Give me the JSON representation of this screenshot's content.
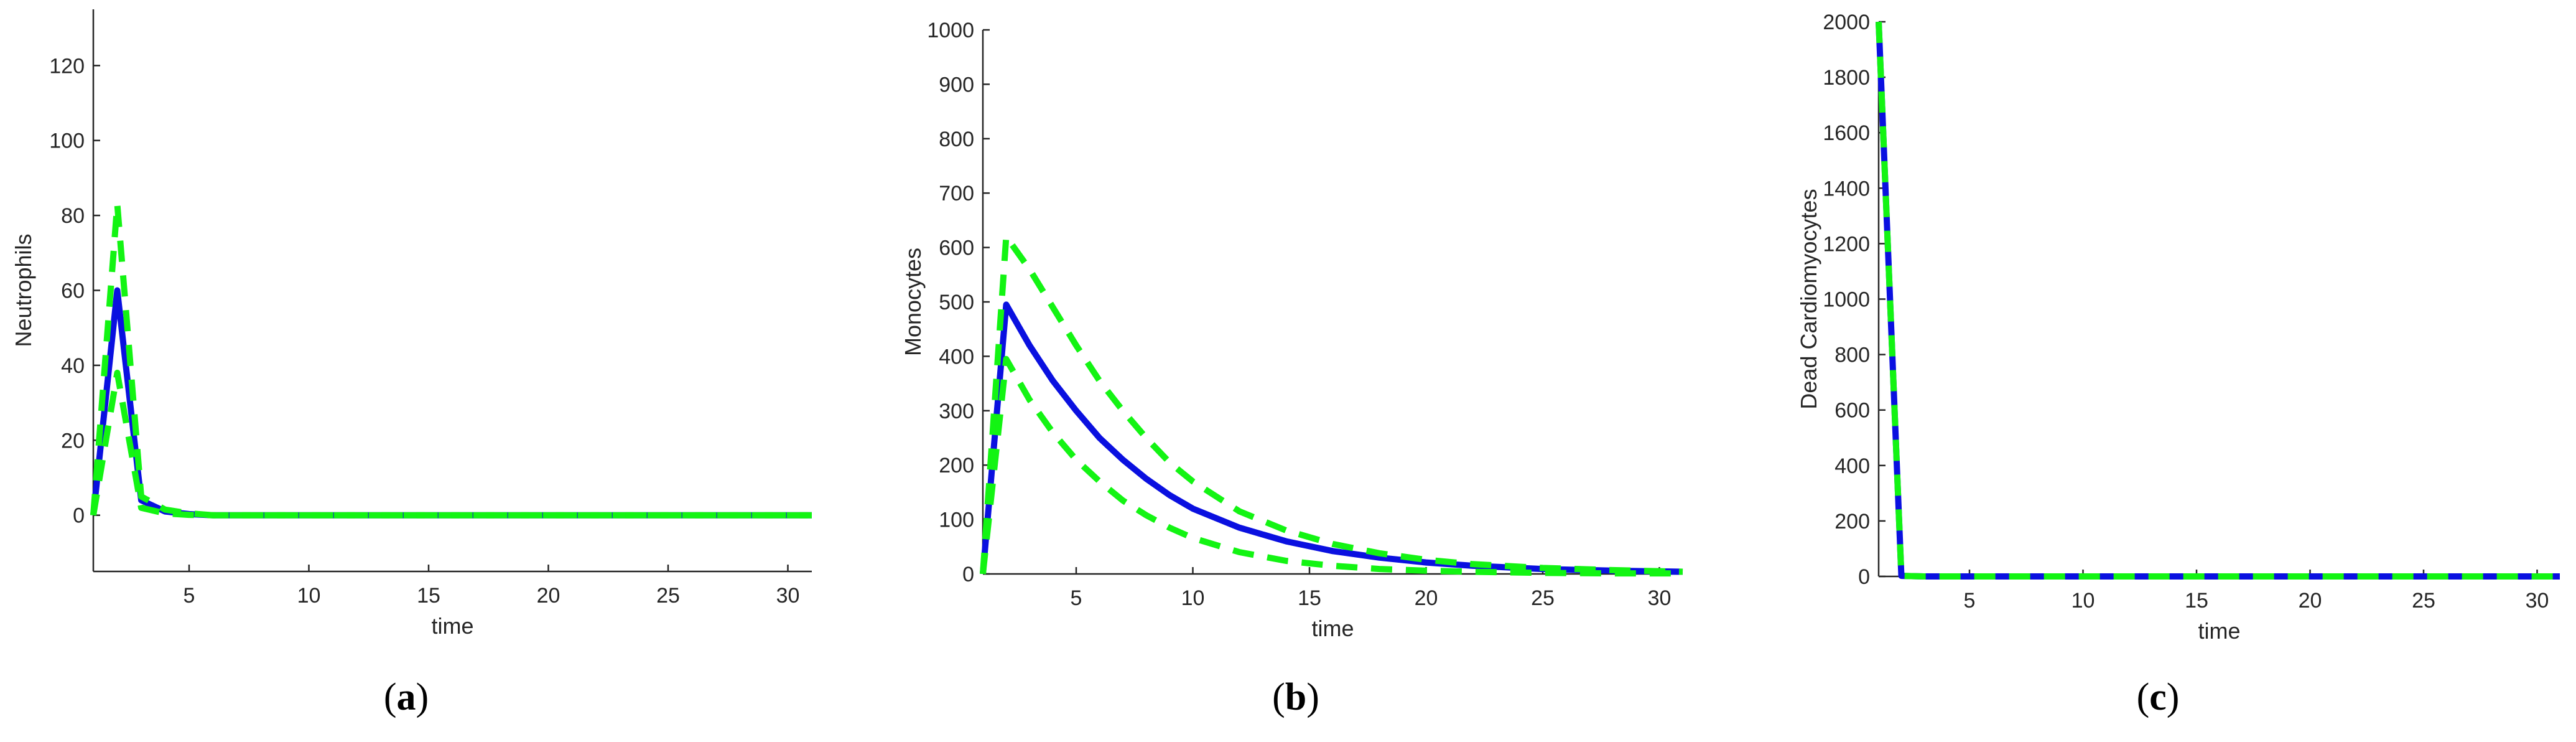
{
  "chart_data": [
    {
      "type": "line",
      "panel_label": "a",
      "xlabel": "time",
      "ylabel": "Neutrophils",
      "xlim": [
        1,
        31
      ],
      "ylim": [
        -15,
        135
      ],
      "xticks": [
        5,
        10,
        15,
        20,
        25,
        30
      ],
      "yticks": [
        0,
        20,
        40,
        60,
        80,
        100,
        120
      ],
      "grid": false,
      "colors": {
        "mean": "#0a10e0",
        "bounds": "#13f413"
      },
      "series": [
        {
          "style": "solid",
          "color": "#0a10e0",
          "x": [
            1,
            2,
            3,
            4,
            5,
            6,
            8,
            10,
            31
          ],
          "y": [
            0,
            60,
            4,
            1,
            0.3,
            0,
            0,
            0,
            0
          ]
        },
        {
          "style": "dashed",
          "color": "#13f413",
          "x": [
            1,
            2,
            3,
            4,
            5,
            6,
            8,
            10,
            31
          ],
          "y": [
            0,
            83,
            5,
            1.5,
            0.5,
            0,
            0,
            0,
            0
          ]
        },
        {
          "style": "dashed",
          "color": "#13f413",
          "x": [
            1,
            2,
            3,
            4,
            5,
            6,
            8,
            10,
            31
          ],
          "y": [
            0,
            38,
            2,
            0.5,
            0.1,
            0,
            0,
            0,
            0
          ]
        }
      ]
    },
    {
      "type": "line",
      "panel_label": "b",
      "xlabel": "time",
      "ylabel": "Monocytes",
      "xlim": [
        1,
        31
      ],
      "ylim": [
        0,
        1000
      ],
      "xticks": [
        5,
        10,
        15,
        20,
        25,
        30
      ],
      "yticks": [
        0,
        100,
        200,
        300,
        400,
        500,
        600,
        700,
        800,
        900,
        1000
      ],
      "grid": false,
      "colors": {
        "mean": "#0a10e0",
        "bounds": "#13f413"
      },
      "series": [
        {
          "style": "solid",
          "color": "#0a10e0",
          "x": [
            1,
            2,
            3,
            4,
            5,
            6,
            7,
            8,
            9,
            10,
            12,
            14,
            16,
            18,
            20,
            22,
            25,
            28,
            31
          ],
          "y": [
            0,
            495,
            420,
            355,
            300,
            250,
            210,
            175,
            145,
            120,
            85,
            60,
            42,
            30,
            21,
            15,
            9,
            6,
            4
          ]
        },
        {
          "style": "dashed",
          "color": "#13f413",
          "x": [
            1,
            2,
            3,
            4,
            5,
            6,
            7,
            8,
            9,
            10,
            12,
            14,
            16,
            18,
            20,
            22,
            25,
            28,
            31
          ],
          "y": [
            0,
            620,
            560,
            490,
            420,
            355,
            300,
            250,
            205,
            170,
            115,
            80,
            55,
            38,
            26,
            18,
            11,
            7,
            4
          ]
        },
        {
          "style": "dashed",
          "color": "#13f413",
          "x": [
            1,
            2,
            3,
            4,
            5,
            6,
            7,
            8,
            9,
            10,
            12,
            14,
            16,
            18,
            20,
            22,
            25,
            28,
            31
          ],
          "y": [
            0,
            395,
            320,
            260,
            210,
            170,
            135,
            108,
            85,
            66,
            40,
            24,
            15,
            9,
            6,
            4,
            2,
            1,
            1
          ]
        }
      ]
    },
    {
      "type": "line",
      "panel_label": "c",
      "xlabel": "time",
      "ylabel": "Dead Cardiomyocytes",
      "xlim": [
        1,
        31
      ],
      "ylim": [
        0,
        2000
      ],
      "xticks": [
        5,
        10,
        15,
        20,
        25,
        30
      ],
      "yticks": [
        0,
        200,
        400,
        600,
        800,
        1000,
        1200,
        1400,
        1600,
        1800,
        2000
      ],
      "grid": false,
      "colors": {
        "mean": "#0a10e0",
        "bounds": "#13f413"
      },
      "series": [
        {
          "style": "solid",
          "color": "#0a10e0",
          "x": [
            1,
            2,
            3,
            5,
            10,
            31
          ],
          "y": [
            2000,
            2,
            0,
            0,
            0,
            0
          ]
        },
        {
          "style": "dashed",
          "color": "#13f413",
          "x": [
            1,
            2,
            3,
            5,
            10,
            31
          ],
          "y": [
            2000,
            2,
            0,
            0,
            0,
            0
          ]
        }
      ]
    }
  ],
  "captions": {
    "a": "a",
    "b": "b",
    "c": "c"
  }
}
